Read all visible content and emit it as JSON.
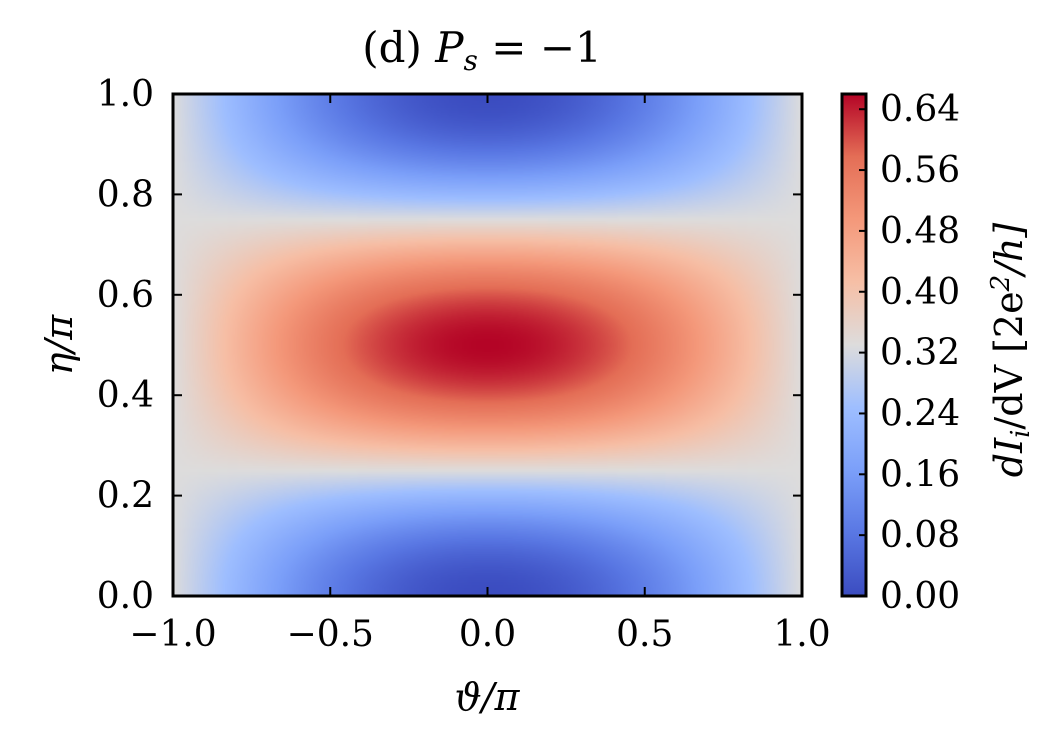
{
  "chart_data": {
    "type": "heatmap",
    "title": "(d) P_s = −1",
    "title_parts": {
      "prefix": "(d) ",
      "symbol": "P",
      "subscript": "s",
      "rest": " = −1"
    },
    "xlabel": "ϑ/π",
    "ylabel": "η/π",
    "xlim": [
      -1.0,
      1.0
    ],
    "ylim": [
      0.0,
      1.0
    ],
    "x_ticks": [
      "−1.0",
      "−0.5",
      "0.0",
      "0.5",
      "1.0"
    ],
    "x_tick_values": [
      -1.0,
      -0.5,
      0.0,
      0.5,
      1.0
    ],
    "y_ticks": [
      "0.0",
      "0.2",
      "0.4",
      "0.6",
      "0.8",
      "1.0"
    ],
    "y_tick_values": [
      0.0,
      0.2,
      0.4,
      0.6,
      0.8,
      1.0
    ],
    "colormap": "coolwarm",
    "colorbar": {
      "label": "dI_i/dV [2e^2/h]",
      "label_parts": {
        "a": "dI",
        "a_sub": "i",
        "b": "/dV [2e",
        "sup": "2",
        "c": "/h]"
      },
      "vmin": 0.0,
      "vmax": 0.66,
      "ticks": [
        "0.00",
        "0.08",
        "0.16",
        "0.24",
        "0.32",
        "0.40",
        "0.48",
        "0.56",
        "0.64"
      ],
      "tick_values": [
        0.0,
        0.08,
        0.16,
        0.24,
        0.32,
        0.4,
        0.48,
        0.56,
        0.64
      ]
    },
    "peak": {
      "x": 0.0,
      "y": 0.5,
      "value": 0.66
    },
    "minima": [
      {
        "x": 0.0,
        "y": 0.0,
        "value": 0.0
      },
      {
        "x": 0.0,
        "y": 1.0,
        "value": 0.0
      }
    ],
    "edge_value": 0.33,
    "grid": false
  }
}
